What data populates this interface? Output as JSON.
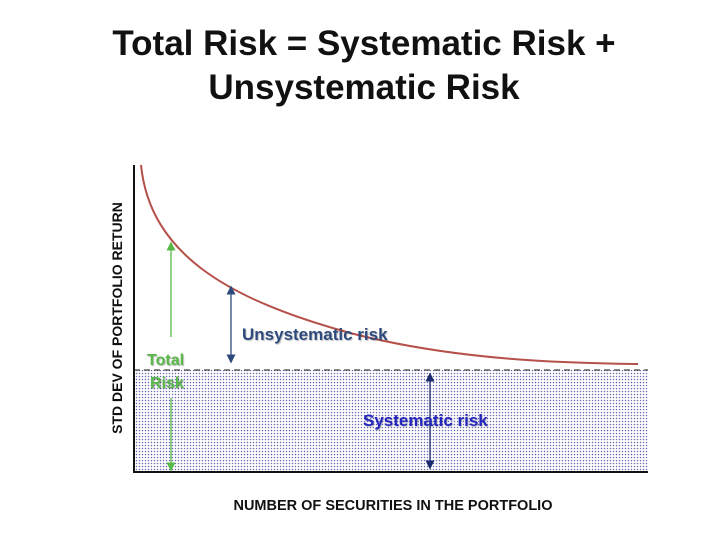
{
  "title": {
    "line1": "Total Risk = Systematic Risk +",
    "line2": "Unsystematic Risk"
  },
  "axes": {
    "y_label": "STD DEV OF PORTFOLIO RETURN",
    "x_label": "NUMBER OF SECURITIES IN THE PORTFOLIO"
  },
  "labels": {
    "unsystematic": "Unsystematic risk",
    "systematic": "Systematic risk",
    "total_line1": "Total",
    "total_line2": "Risk"
  },
  "colors": {
    "curve": "#b5504a",
    "unsystematic": "#2e4a7d",
    "systematic": "#2525c0",
    "total": "#58b848",
    "axis": "#111111",
    "dots": "#6a6ab0"
  }
}
